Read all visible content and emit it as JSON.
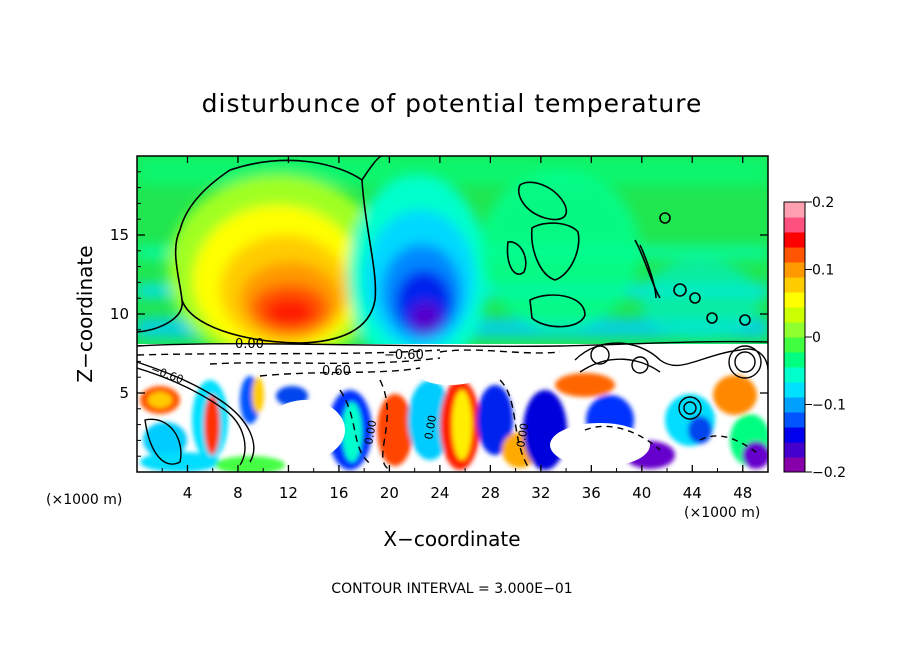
{
  "chart_data": {
    "type": "heatmap",
    "title": "disturbunce of potential temperature",
    "xlabel": "X−coordinate",
    "ylabel": "Z−coordinate",
    "x_unit_left": "(×1000 m)",
    "x_unit_right": "(×1000 m)",
    "xlim": [
      0,
      50
    ],
    "ylim": [
      0,
      20
    ],
    "x_ticks": [
      4,
      8,
      12,
      16,
      20,
      24,
      28,
      32,
      36,
      40,
      44,
      48
    ],
    "y_ticks": [
      5,
      10,
      15
    ],
    "colorbar": {
      "range": [
        -0.2,
        0.2
      ],
      "tick_labels": [
        "0.2",
        "0.1",
        "0",
        "−0.1",
        "−0.2"
      ],
      "tick_values": [
        0.2,
        0.1,
        0,
        -0.1,
        -0.2
      ],
      "colors": [
        "#8800aa",
        "#4400cc",
        "#0000ee",
        "#0055ff",
        "#00a0ff",
        "#00e0ff",
        "#00ffcc",
        "#00ff80",
        "#40ff40",
        "#90ff30",
        "#ccff00",
        "#ffff00",
        "#ffcc00",
        "#ff9900",
        "#ff5500",
        "#ff0000",
        "#ff5080",
        "#ffa0b0"
      ]
    },
    "contour_labels": [
      "0.00",
      "0.60",
      "−0.60",
      "0.00",
      "0.00",
      "0.00",
      "−0.60"
    ],
    "footnote": "CONTOUR INTERVAL = 3.000E−01"
  }
}
